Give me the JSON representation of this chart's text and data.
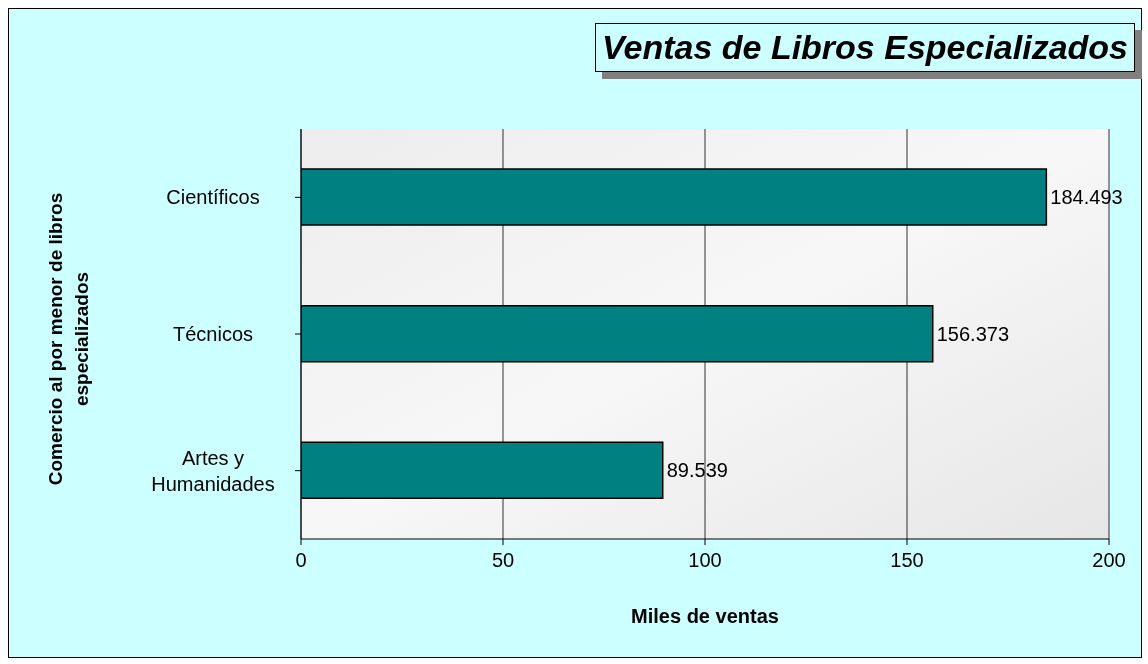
{
  "chart_data": {
    "type": "bar",
    "orientation": "horizontal",
    "title": "Ventas de Libros Especializados",
    "xlabel": "Miles de ventas",
    "ylabel": "Comercio al por menor de libros especializados",
    "categories": [
      "Científicos",
      "Técnicos",
      "Artes y Humanidades"
    ],
    "values": [
      184.493,
      156.373,
      89.539
    ],
    "color": "#008080",
    "xlim": [
      0,
      200
    ],
    "xticks": [
      0,
      50,
      100,
      150,
      200
    ],
    "grid": "x",
    "data_labels": true
  }
}
